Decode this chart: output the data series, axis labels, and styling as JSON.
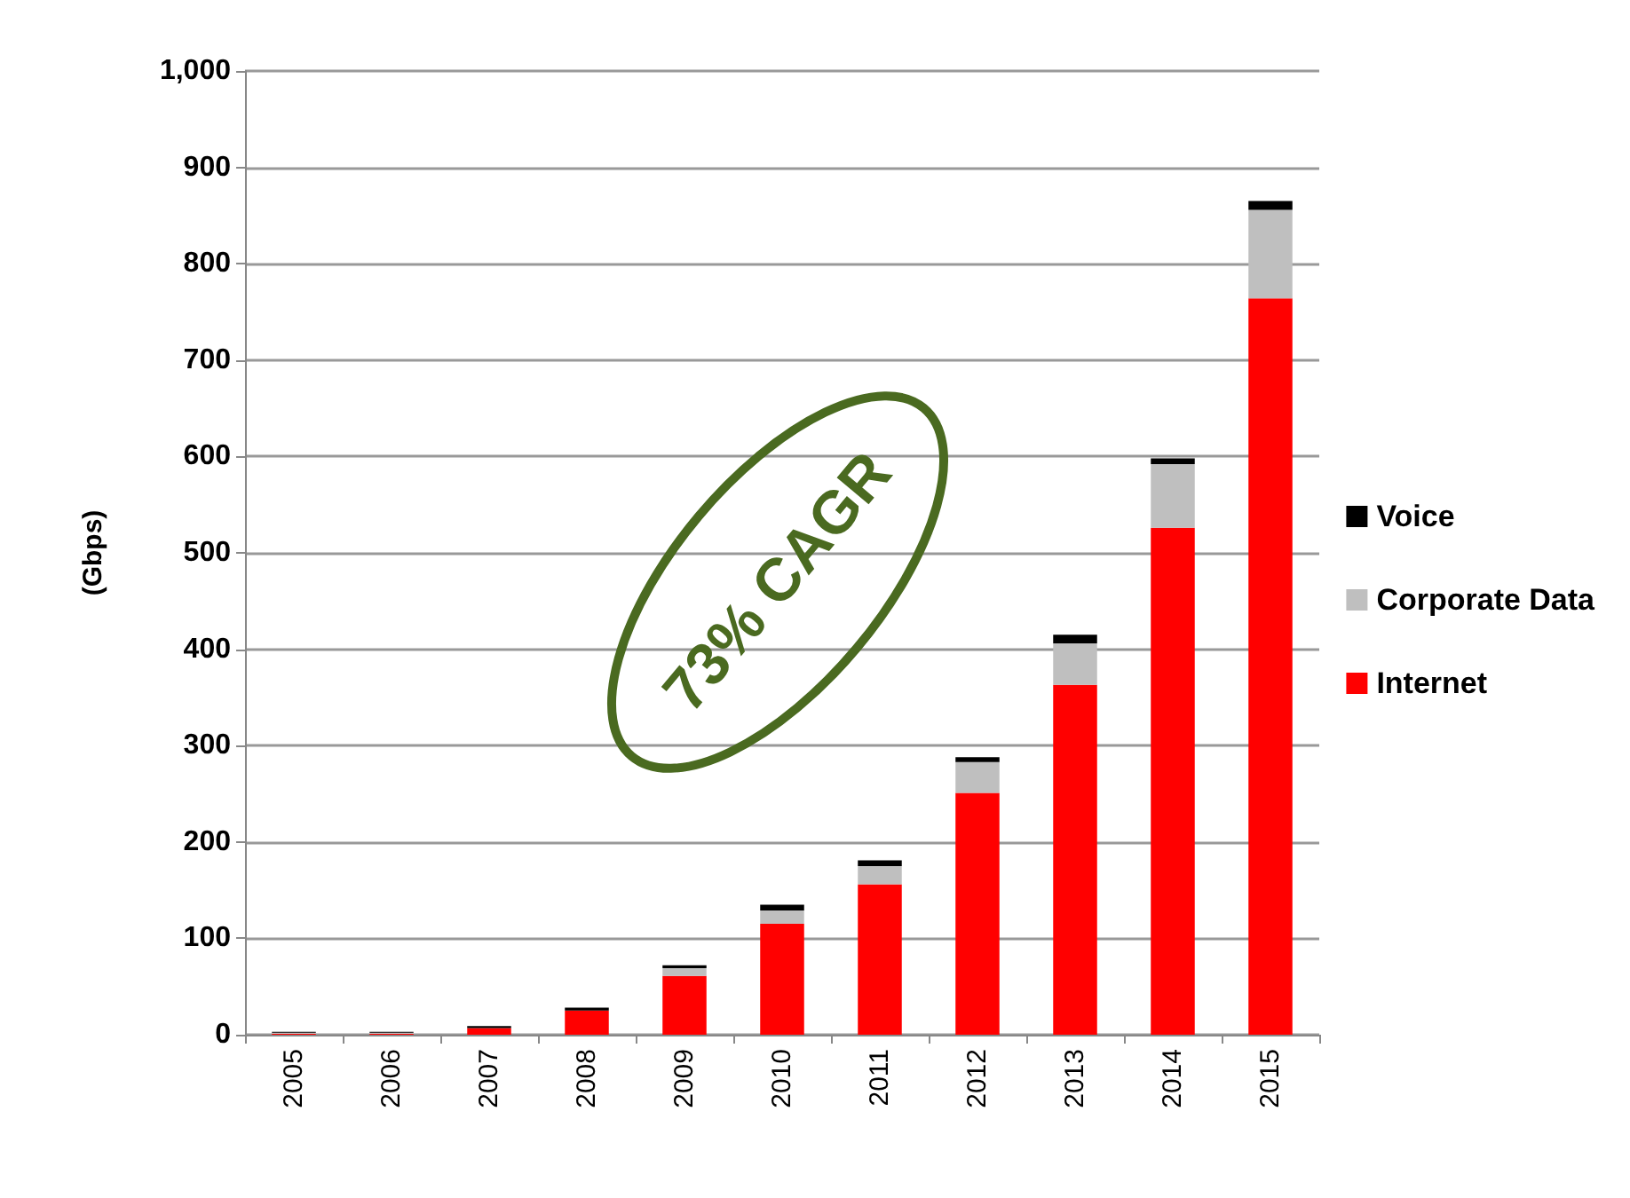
{
  "chart_data": {
    "type": "bar",
    "ylabel": "(Gbps)",
    "categories": [
      "2005",
      "2006",
      "2007",
      "2008",
      "2009",
      "2010",
      "2011",
      "2012",
      "2013",
      "2014",
      "2015"
    ],
    "series": [
      {
        "name": "Internet",
        "color": "#ff0000",
        "values": [
          1,
          1,
          7,
          25,
          61,
          115,
          156,
          251,
          363,
          526,
          764
        ]
      },
      {
        "name": "Corporate Data",
        "color": "#bfbfbf",
        "values": [
          1,
          1,
          null,
          null,
          8,
          14,
          19,
          32,
          43,
          66,
          92
        ]
      },
      {
        "name": "Voice",
        "color": "#000000",
        "values": [
          1,
          1,
          2,
          3,
          3,
          6,
          6,
          5,
          9,
          6,
          9
        ]
      }
    ],
    "stacked": true,
    "ylim": [
      0,
      1000
    ],
    "yticks": [
      0,
      100,
      200,
      300,
      400,
      500,
      600,
      700,
      800,
      900,
      {
        "value": 1000,
        "label": "1,000"
      }
    ],
    "grid": "y",
    "legend": "right",
    "annotations": [
      "73% CAGR"
    ]
  }
}
